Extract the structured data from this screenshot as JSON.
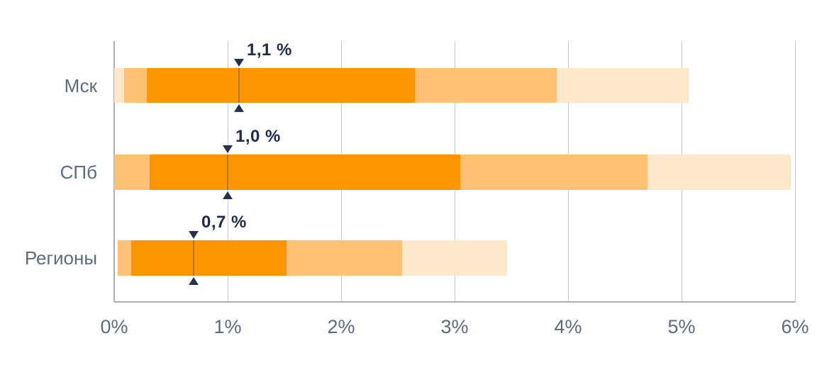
{
  "chart_data": {
    "type": "bar",
    "orientation": "horizontal",
    "title": "",
    "xlabel": "",
    "ylabel": "",
    "xlim": [
      0,
      6
    ],
    "x_tick_values": [
      0,
      1,
      2,
      3,
      4,
      5,
      6
    ],
    "x_tick_labels": [
      "0%",
      "1%",
      "2%",
      "3%",
      "4%",
      "5%",
      "6%"
    ],
    "grid": "vertical",
    "legend": "none",
    "categories": [
      "Мск",
      "СПб",
      "Регионы"
    ],
    "rows": [
      {
        "label": "Мск",
        "marker_value": 1.1,
        "marker_label": "1,1 %",
        "segments": [
          {
            "shade": "light",
            "from": 0.0,
            "to": 0.09
          },
          {
            "shade": "medium",
            "from": 0.09,
            "to": 0.29
          },
          {
            "shade": "dark",
            "from": 0.29,
            "to": 2.65
          },
          {
            "shade": "medium",
            "from": 2.65,
            "to": 3.9
          },
          {
            "shade": "light",
            "from": 3.9,
            "to": 5.06
          }
        ]
      },
      {
        "label": "СПб",
        "marker_value": 1.0,
        "marker_label": "1,0 %",
        "segments": [
          {
            "shade": "medium",
            "from": 0.0,
            "to": 0.31
          },
          {
            "shade": "dark",
            "from": 0.31,
            "to": 3.05
          },
          {
            "shade": "medium",
            "from": 3.05,
            "to": 4.7
          },
          {
            "shade": "light",
            "from": 4.7,
            "to": 5.96
          }
        ]
      },
      {
        "label": "Регионы",
        "marker_value": 0.7,
        "marker_label": "0,7 %",
        "segments": [
          {
            "shade": "medium",
            "from": 0.03,
            "to": 0.15
          },
          {
            "shade": "dark",
            "from": 0.15,
            "to": 1.52
          },
          {
            "shade": "medium",
            "from": 1.52,
            "to": 2.54
          },
          {
            "shade": "light",
            "from": 2.54,
            "to": 3.46
          }
        ]
      }
    ],
    "colors": {
      "bar_dark": "#FB9600",
      "bar_medium": "#FFC173",
      "bar_light": "#FEE8CB",
      "marker": "#26324B",
      "marker_line_over_bar": "rgba(37,48,73,0.30)",
      "value_label": "#202C47",
      "axis_label": "#5D6B7E",
      "gridline": "#C9CBCE",
      "axis_line": "#ABAEB2",
      "background": "#FFFFFF"
    }
  }
}
